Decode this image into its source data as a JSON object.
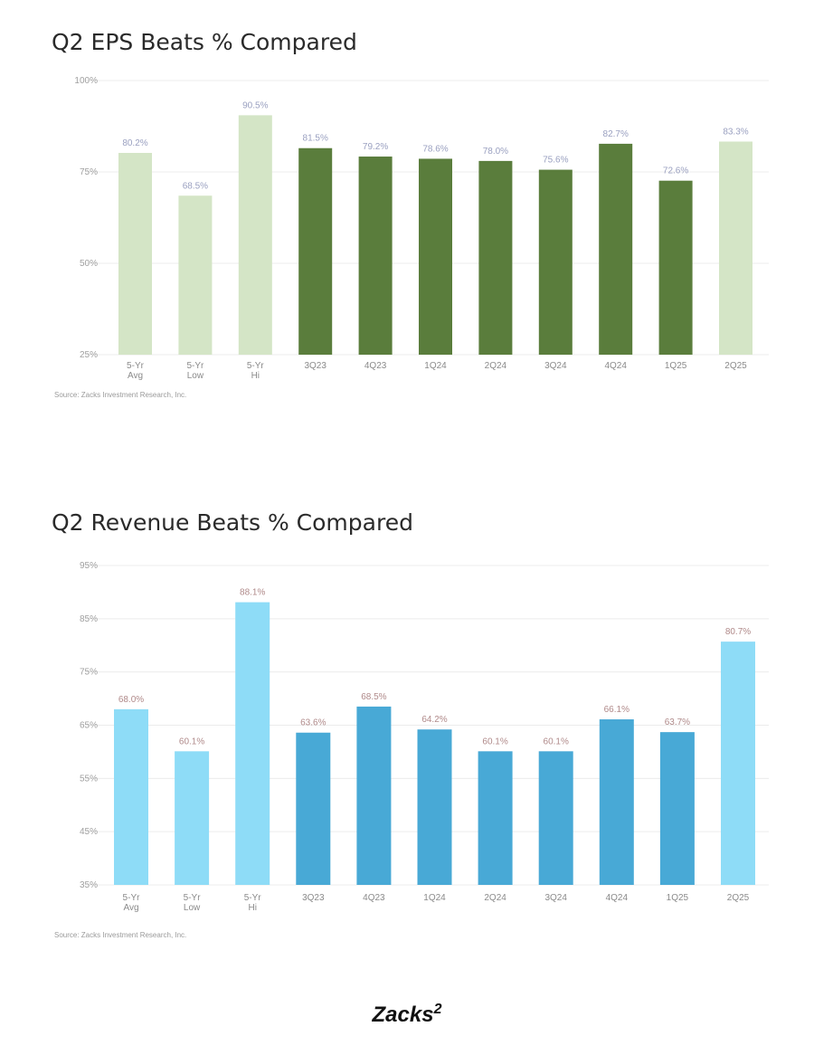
{
  "chart_data": [
    {
      "type": "bar",
      "title": "Q2 EPS Beats % Compared",
      "source": "Source: Zacks Investment Research, Inc.",
      "categories": [
        [
          "5-Yr",
          "Avg"
        ],
        [
          "5-Yr",
          "Low"
        ],
        [
          "5-Yr",
          "Hi"
        ],
        [
          "3Q23"
        ],
        [
          "4Q23"
        ],
        [
          "1Q24"
        ],
        [
          "2Q24"
        ],
        [
          "3Q24"
        ],
        [
          "4Q24"
        ],
        [
          "1Q25"
        ],
        [
          "2Q25"
        ]
      ],
      "values": [
        80.2,
        68.5,
        90.5,
        81.5,
        79.2,
        78.6,
        78.0,
        75.6,
        82.7,
        72.6,
        83.3
      ],
      "labels": [
        "80.2%",
        "68.5%",
        "90.5%",
        "81.5%",
        "79.2%",
        "78.6%",
        "78.0%",
        "75.6%",
        "82.7%",
        "72.6%",
        "83.3%"
      ],
      "highlight": [
        true,
        true,
        true,
        false,
        false,
        false,
        false,
        false,
        false,
        false,
        true
      ],
      "yticks": [
        "100%",
        "75%",
        "50%",
        "25%"
      ],
      "ylim": [
        25,
        100
      ],
      "grid": true,
      "colors": {
        "highlight": "#d4e5c6",
        "base": "#5a7d3c",
        "label": "#9aa0c0"
      }
    },
    {
      "type": "bar",
      "title": "Q2 Revenue Beats % Compared",
      "source": "Source: Zacks Investment Research, Inc.",
      "categories": [
        [
          "5-Yr",
          "Avg"
        ],
        [
          "5-Yr",
          "Low"
        ],
        [
          "5-Yr",
          "Hi"
        ],
        [
          "3Q23"
        ],
        [
          "4Q23"
        ],
        [
          "1Q24"
        ],
        [
          "2Q24"
        ],
        [
          "3Q24"
        ],
        [
          "4Q24"
        ],
        [
          "1Q25"
        ],
        [
          "2Q25"
        ]
      ],
      "values": [
        68.0,
        60.1,
        88.1,
        63.6,
        68.5,
        64.2,
        60.1,
        60.1,
        66.1,
        63.7,
        80.7
      ],
      "labels": [
        "68.0%",
        "60.1%",
        "88.1%",
        "63.6%",
        "68.5%",
        "64.2%",
        "60.1%",
        "60.1%",
        "66.1%",
        "63.7%",
        "80.7%"
      ],
      "highlight": [
        true,
        true,
        true,
        false,
        false,
        false,
        false,
        false,
        false,
        false,
        true
      ],
      "yticks": [
        "95%",
        "85%",
        "75%",
        "65%",
        "55%",
        "45%",
        "35%"
      ],
      "ylim": [
        35,
        95
      ],
      "grid": true,
      "colors": {
        "highlight": "#8edcf7",
        "base": "#48a9d6",
        "label": "#b08a8a"
      }
    }
  ],
  "footer": {
    "brand": "Zacks",
    "superscript": "2"
  }
}
